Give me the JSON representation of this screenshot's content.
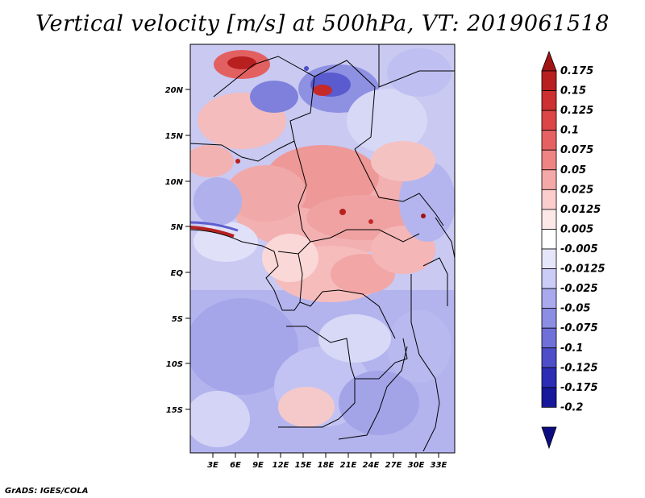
{
  "title": "Vertical velocity [m/s] at 500hPa, VT: 2019061518",
  "credit": "GrADS: IGES/COLA",
  "axes": {
    "lat_labels": [
      "20N",
      "15N",
      "10N",
      "5N",
      "EQ",
      "5S",
      "10S",
      "15S"
    ],
    "lon_labels": [
      "3E",
      "6E",
      "9E",
      "12E",
      "15E",
      "18E",
      "21E",
      "24E",
      "27E",
      "30E",
      "33E"
    ]
  },
  "colorbar": {
    "labels": [
      "0.175",
      "0.15",
      "0.125",
      "0.1",
      "0.075",
      "0.05",
      "0.025",
      "0.0125",
      "0.005",
      "-0.005",
      "-0.0125",
      "-0.025",
      "-0.05",
      "-0.075",
      "-0.1",
      "-0.125",
      "-0.175",
      "-0.2"
    ],
    "colors": [
      "#a01414",
      "#b82020",
      "#cc3030",
      "#dc4646",
      "#e66262",
      "#ee8484",
      "#f5a8a8",
      "#fbcdcd",
      "#fde8e8",
      "#ffffff",
      "#e6e6fb",
      "#cccdf6",
      "#a9aaee",
      "#8c8ee4",
      "#6f70d8",
      "#4d4ec8",
      "#2c2db4",
      "#18189a",
      "#0c0c82"
    ]
  }
}
